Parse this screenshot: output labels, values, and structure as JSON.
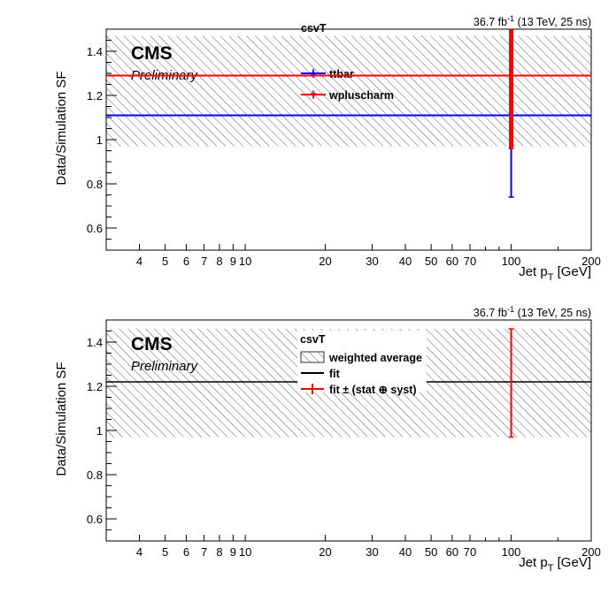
{
  "lumi_text_parts": [
    "36.7 fb",
    "-1",
    " (13 TeV, 25 ns)"
  ],
  "chart_data": [
    {
      "type": "line",
      "title": "",
      "ylabel": "Data/Simulation SF",
      "xlabel_parts": [
        "Jet p",
        "T",
        " [GeV]"
      ],
      "xscale": "log",
      "xlim": [
        3,
        200
      ],
      "ylim": [
        0.5,
        1.5
      ],
      "xticks": [
        4,
        5,
        6,
        7,
        8,
        9,
        10,
        20,
        30,
        40,
        50,
        60,
        70,
        100,
        200
      ],
      "yticks": [
        0.6,
        0.8,
        1.0,
        1.2,
        1.4
      ],
      "cms_label": "CMS",
      "cms_sublabel": "Preliminary",
      "legend_title": "csvT",
      "hatched_band": {
        "low": 0.97,
        "high": 1.47
      },
      "series": [
        {
          "name": "ttbar",
          "color": "#0000ff",
          "level": 1.11,
          "points": [
            {
              "x": 100,
              "y": 1.11,
              "yerr_low": 0.37,
              "yerr_high": 0.39
            }
          ]
        },
        {
          "name": "wpluscharm",
          "color": "#ff0000",
          "level": 1.29,
          "points": [
            {
              "x": 100,
              "y": 1.29,
              "yerr_low": 0.33,
              "yerr_high": 0.25
            }
          ]
        }
      ]
    },
    {
      "type": "line",
      "title": "",
      "ylabel": "Data/Simulation SF",
      "xlabel_parts": [
        "Jet p",
        "T",
        " [GeV]"
      ],
      "xscale": "log",
      "xlim": [
        3,
        200
      ],
      "ylim": [
        0.5,
        1.5
      ],
      "xticks": [
        4,
        5,
        6,
        7,
        8,
        9,
        10,
        20,
        30,
        40,
        50,
        60,
        70,
        100,
        200
      ],
      "yticks": [
        0.6,
        0.8,
        1.0,
        1.2,
        1.4
      ],
      "cms_label": "CMS",
      "cms_sublabel": "Preliminary",
      "legend_title": "csvT",
      "hatched_band": {
        "low": 0.97,
        "high": 1.46
      },
      "fit_value": 1.22,
      "fit_point": {
        "x": 100,
        "y": 1.22,
        "yerr_low": 0.25,
        "yerr_high": 0.24
      },
      "legend": [
        {
          "name": "weighted average",
          "kind": "hatch"
        },
        {
          "name": "fit",
          "kind": "line",
          "color": "#000000"
        },
        {
          "name": "fit ± (stat ⊕ syst)",
          "kind": "errorbar",
          "color": "#ff0000"
        }
      ]
    }
  ]
}
